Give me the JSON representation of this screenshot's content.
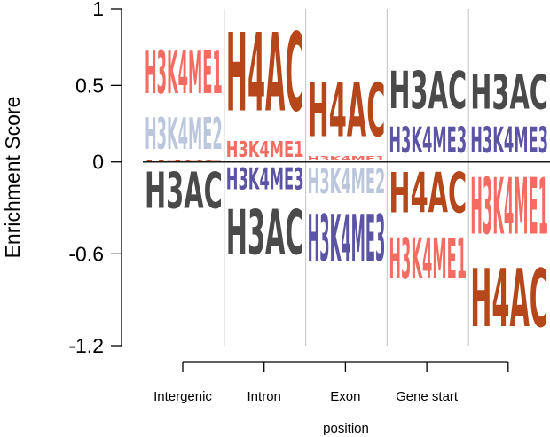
{
  "chart_data": {
    "type": "bar",
    "subtype": "stacked-sequence-logo",
    "ylabel": "Enrichment Score",
    "xlabel": "position",
    "ylim": [
      -1.2,
      1
    ],
    "yticks": [
      {
        "value": 1,
        "label": "1"
      },
      {
        "value": 0.5,
        "label": "0.5"
      },
      {
        "value": 0,
        "label": "0"
      },
      {
        "value": -0.6,
        "label": "-0.6"
      },
      {
        "value": -1.2,
        "label": "-1.2"
      }
    ],
    "x_tick_labels": [
      "Intergenic",
      "Intron",
      "Exon",
      "Gene start"
    ],
    "n_columns": 5,
    "colors": {
      "H3K4ME1": "#f36b61",
      "H3K4ME2": "#bcc6dc",
      "H3K4ME3": "#5b53a3",
      "H4AC": "#b5471a",
      "H3AC": "#4a4a4a"
    },
    "columns": [
      {
        "positive": [
          {
            "label": "H4AC",
            "value": 0.02
          },
          {
            "label": "H3K4ME2",
            "value": 0.33
          },
          {
            "label": "H3K4ME1",
            "value": 0.45
          }
        ],
        "negative": [
          {
            "label": "H3AC",
            "value": -0.38
          }
        ]
      },
      {
        "positive": [
          {
            "label": "H3K4ME1",
            "value": 0.17
          },
          {
            "label": "H4AC",
            "value": 0.82
          }
        ],
        "negative": [
          {
            "label": "H3K4ME3",
            "value": -0.23
          },
          {
            "label": "H3AC",
            "value": -0.47
          }
        ]
      },
      {
        "positive": [
          {
            "label": "H3K4ME1",
            "value": 0.05
          },
          {
            "label": "H4AC",
            "value": 0.56
          }
        ],
        "negative": [
          {
            "label": "H3K4ME2",
            "value": -0.26
          },
          {
            "label": "H3K4ME3",
            "value": -0.49
          }
        ]
      },
      {
        "positive": [
          {
            "label": "H3K4ME3",
            "value": 0.27
          },
          {
            "label": "H3AC",
            "value": 0.39
          }
        ],
        "negative": [
          {
            "label": "H4AC",
            "value": -0.42
          },
          {
            "label": "H3K4ME1",
            "value": -0.43
          }
        ]
      },
      {
        "positive": [
          {
            "label": "H3K4ME3",
            "value": 0.27
          },
          {
            "label": "H3AC",
            "value": 0.36
          }
        ],
        "negative": [
          {
            "label": "H3K4ME1",
            "value": -0.59
          },
          {
            "label": "H4AC",
            "value": -0.61
          }
        ]
      }
    ]
  }
}
